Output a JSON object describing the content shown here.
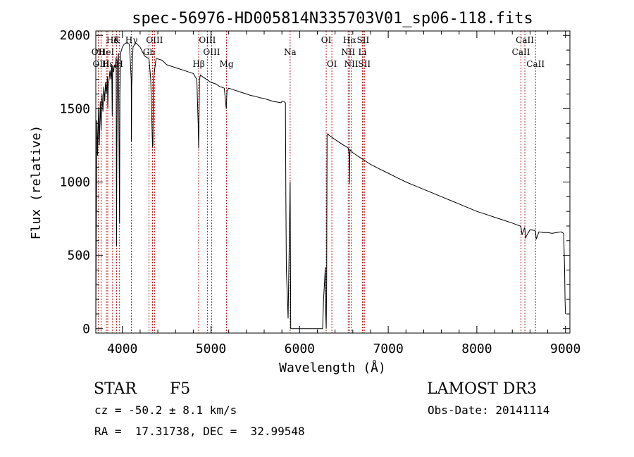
{
  "chart_data": {
    "type": "line",
    "title": "spec-56976-HD005814N335703V01_sp06-118.fits",
    "xlabel": "Wavelength (Å)",
    "ylabel": "Flux (relative)",
    "xlim": [
      3700,
      9050
    ],
    "ylim": [
      -30,
      2030
    ],
    "xticks": [
      4000,
      5000,
      6000,
      7000,
      8000,
      9000
    ],
    "yticks": [
      0,
      500,
      1000,
      1500,
      2000
    ],
    "line_color": "#000000",
    "marker_color": "#b22222",
    "series": [
      {
        "name": "flux",
        "x": [
          3700,
          3705,
          3712,
          3720,
          3730,
          3740,
          3750,
          3760,
          3770,
          3780,
          3790,
          3800,
          3810,
          3820,
          3830,
          3835,
          3840,
          3850,
          3860,
          3870,
          3880,
          3885,
          3890,
          3900,
          3910,
          3920,
          3930,
          3934,
          3938,
          3945,
          3955,
          3964,
          3968,
          3972,
          3980,
          3990,
          4000,
          4020,
          4050,
          4080,
          4100,
          4102,
          4105,
          4120,
          4150,
          4200,
          4250,
          4300,
          4320,
          4340,
          4345,
          4350,
          4380,
          4400,
          4450,
          4500,
          4550,
          4600,
          4650,
          4700,
          4750,
          4800,
          4840,
          4855,
          4861,
          4865,
          4870,
          4880,
          4900,
          4950,
          5000,
          5050,
          5100,
          5150,
          5172,
          5180,
          5200,
          5250,
          5300,
          5350,
          5400,
          5450,
          5500,
          5550,
          5600,
          5650,
          5700,
          5750,
          5790,
          5800,
          5820,
          5840,
          5845,
          5850,
          5870,
          5893,
          5900,
          5950,
          6000,
          6100,
          6200,
          6260,
          6270,
          6280,
          6290,
          6295,
          6300,
          6305,
          6310,
          6320,
          6330,
          6350,
          6400,
          6450,
          6500,
          6530,
          6550,
          6560,
          6563,
          6566,
          6570,
          6580,
          6600,
          6650,
          6700,
          6800,
          6900,
          7000,
          7100,
          7200,
          7300,
          7400,
          7500,
          7600,
          7700,
          7800,
          7900,
          8000,
          8100,
          8200,
          8300,
          8400,
          8490,
          8498,
          8510,
          8540,
          8542,
          8548,
          8600,
          8650,
          8662,
          8670,
          8700,
          8750,
          8800,
          8850,
          8900,
          8950,
          8980,
          8990,
          8995,
          9000
        ],
        "values": [
          0,
          600,
          1420,
          1180,
          1500,
          1250,
          1550,
          1350,
          1600,
          1480,
          1650,
          1550,
          1680,
          1600,
          1720,
          1500,
          1650,
          1700,
          1760,
          1700,
          1800,
          1450,
          1790,
          1750,
          1800,
          1780,
          1850,
          560,
          1200,
          1820,
          1880,
          1100,
          720,
          1600,
          1880,
          1900,
          1920,
          1940,
          1950,
          1940,
          1700,
          1280,
          1650,
          1920,
          1950,
          1920,
          1860,
          1840,
          1700,
          1240,
          1250,
          1700,
          1840,
          1840,
          1830,
          1800,
          1790,
          1780,
          1770,
          1760,
          1750,
          1740,
          1700,
          1400,
          1230,
          1480,
          1700,
          1730,
          1720,
          1700,
          1680,
          1670,
          1650,
          1640,
          1500,
          1620,
          1640,
          1630,
          1620,
          1610,
          1600,
          1590,
          1585,
          1575,
          1570,
          1560,
          1550,
          1545,
          1540,
          1550,
          1550,
          1540,
          900,
          400,
          70,
          1000,
          0,
          0,
          0,
          0,
          0,
          0,
          200,
          300,
          420,
          100,
          0,
          300,
          1320,
          1330,
          1320,
          1310,
          1290,
          1270,
          1250,
          1240,
          1230,
          1180,
          990,
          1180,
          1220,
          1215,
          1200,
          1180,
          1160,
          1120,
          1090,
          1060,
          1030,
          1000,
          975,
          950,
          925,
          900,
          875,
          850,
          825,
          800,
          780,
          760,
          740,
          720,
          700,
          690,
          640,
          690,
          680,
          620,
          675,
          670,
          665,
          610,
          660,
          655,
          655,
          650,
          655,
          660,
          650,
          400,
          200,
          100
        ]
      }
    ],
    "annotations": {
      "line_marks": [
        {
          "label": "Hδ",
          "x": 3889,
          "level": 1
        },
        {
          "label": "OII",
          "x": 3727,
          "level": 2
        },
        {
          "label": "HeI",
          "x": 3820,
          "level": 2
        },
        {
          "label": "OIII",
          "x": 3760,
          "level": 3
        },
        {
          "label": "Hε",
          "x": 3835,
          "level": 3
        },
        {
          "label": "H",
          "x": 3968,
          "level": 3
        },
        {
          "label": "K",
          "x": 3934,
          "level": 1
        },
        {
          "label": "Hγ",
          "x": 4102,
          "level": 1
        },
        {
          "label": "Gb",
          "x": 4300,
          "level": 2
        },
        {
          "label": "OIII",
          "x": 4363,
          "level": 1
        },
        {
          "label": "Hβ",
          "x": 4861,
          "level": 3
        },
        {
          "label": "OIII",
          "x": 4959,
          "level": 1
        },
        {
          "label": "OIII",
          "x": 5007,
          "level": 2
        },
        {
          "label": "Mg",
          "x": 5175,
          "level": 3
        },
        {
          "label": "Na",
          "x": 5893,
          "level": 2
        },
        {
          "label": "OI",
          "x": 6300,
          "level": 1
        },
        {
          "label": "OI",
          "x": 6364,
          "level": 3
        },
        {
          "label": "Hα",
          "x": 6563,
          "level": 1
        },
        {
          "label": "NII",
          "x": 6548,
          "level": 2
        },
        {
          "label": "NII",
          "x": 6583,
          "level": 3
        },
        {
          "label": "SII",
          "x": 6716,
          "level": 1
        },
        {
          "label": "Li",
          "x": 6708,
          "level": 2
        },
        {
          "label": "SII",
          "x": 6731,
          "level": 3
        },
        {
          "label": "CaII",
          "x": 8542,
          "level": 1
        },
        {
          "label": "CaII",
          "x": 8498,
          "level": 2
        },
        {
          "label": "CaII",
          "x": 8662,
          "level": 3
        }
      ],
      "marker_lines": [
        3727,
        3760,
        3820,
        3835,
        3889,
        3934,
        3968,
        4102,
        4300,
        4340,
        4363,
        4861,
        4959,
        5007,
        5175,
        5893,
        6300,
        6364,
        6548,
        6563,
        6583,
        6708,
        6716,
        6731,
        8498,
        8542,
        8662
      ]
    }
  },
  "info": {
    "object_class": "STAR",
    "subclass": "F5",
    "survey": "LAMOST DR3",
    "redshift": "cz = -50.2 ± 8.1 km/s",
    "obs_date": "Obs-Date: 20141114",
    "coords": "RA =  17.31738, DEC =  32.99548"
  }
}
